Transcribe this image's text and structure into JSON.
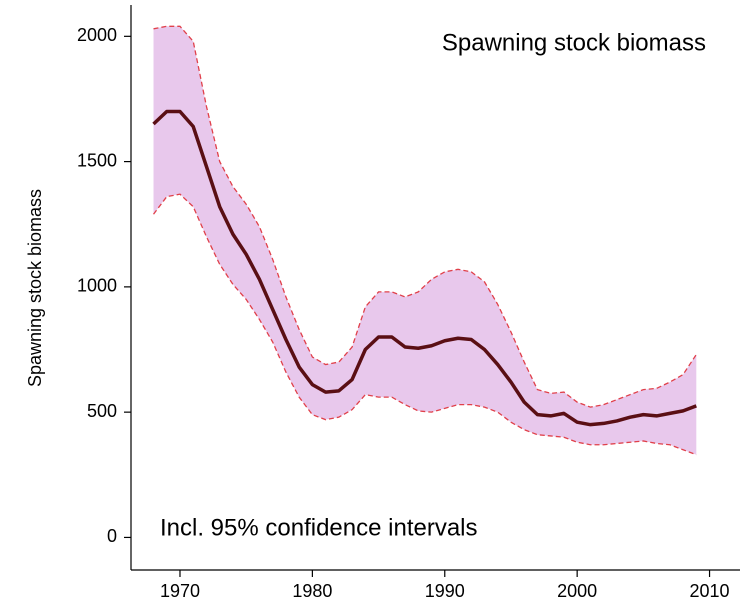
{
  "chart_data": {
    "type": "line",
    "title": "Spawning stock biomass",
    "annotation": "Incl. 95% confidence intervals",
    "y_label": "Spawning stock biomass",
    "x": [
      1968,
      1969,
      1970,
      1971,
      1972,
      1973,
      1974,
      1975,
      1976,
      1977,
      1978,
      1979,
      1980,
      1981,
      1982,
      1983,
      1984,
      1985,
      1986,
      1987,
      1988,
      1989,
      1990,
      1991,
      1992,
      1993,
      1994,
      1995,
      1996,
      1997,
      1998,
      1999,
      2000,
      2001,
      2002,
      2003,
      2004,
      2005,
      2006,
      2007,
      2008,
      2009
    ],
    "series": [
      {
        "color": "#5a0f14",
        "values": [
          1650,
          1700,
          1700,
          1640,
          1480,
          1320,
          1210,
          1130,
          1030,
          910,
          790,
          680,
          610,
          580,
          585,
          630,
          750,
          800,
          800,
          760,
          755,
          765,
          785,
          795,
          790,
          750,
          690,
          620,
          540,
          490,
          485,
          495,
          460,
          450,
          455,
          465,
          480,
          490,
          485,
          495,
          505,
          525
        ]
      }
    ],
    "band": {
      "fill": "#e8c8ec",
      "line_color": "#e0404a",
      "upper": [
        2030,
        2040,
        2040,
        1980,
        1720,
        1500,
        1400,
        1330,
        1240,
        1110,
        960,
        830,
        720,
        690,
        700,
        760,
        920,
        980,
        980,
        960,
        980,
        1030,
        1060,
        1070,
        1060,
        1020,
        930,
        820,
        700,
        590,
        575,
        580,
        540,
        520,
        530,
        550,
        570,
        590,
        595,
        620,
        650,
        730
      ],
      "lower": [
        1290,
        1360,
        1370,
        1320,
        1200,
        1090,
        1010,
        950,
        870,
        780,
        660,
        560,
        490,
        470,
        480,
        510,
        570,
        560,
        560,
        530,
        505,
        500,
        515,
        530,
        530,
        520,
        500,
        460,
        430,
        410,
        405,
        400,
        380,
        370,
        370,
        375,
        380,
        385,
        375,
        370,
        350,
        330
      ]
    },
    "xlim": [
      1966.3,
      2012.3
    ],
    "xticks": [
      1970,
      1980,
      1990,
      2000,
      2010
    ],
    "ylim": [
      -130,
      2125
    ],
    "yticks": [
      0,
      500,
      1000,
      1500,
      2000
    ]
  }
}
